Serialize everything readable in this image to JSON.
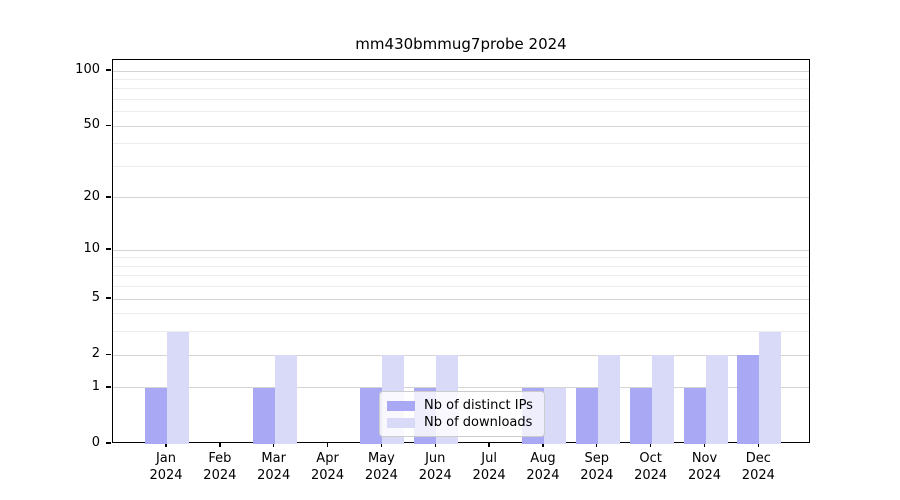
{
  "chart_data": {
    "type": "bar",
    "title": "mm430bmmug7probe 2024",
    "months": [
      "Jan",
      "Feb",
      "Mar",
      "Apr",
      "May",
      "Jun",
      "Jul",
      "Aug",
      "Sep",
      "Oct",
      "Nov",
      "Dec"
    ],
    "year": "2024",
    "categories": [
      "Jan 2024",
      "Feb 2024",
      "Mar 2024",
      "Apr 2024",
      "May 2024",
      "Jun 2024",
      "Jul 2024",
      "Aug 2024",
      "Sep 2024",
      "Oct 2024",
      "Nov 2024",
      "Dec 2024"
    ],
    "series": [
      {
        "name": "Nb of distinct IPs",
        "color": "#a8a8f5",
        "values": [
          1,
          0,
          1,
          0,
          1,
          1,
          0,
          1,
          1,
          1,
          1,
          2
        ]
      },
      {
        "name": "Nb of downloads",
        "color": "#d9d9f8",
        "values": [
          3,
          0,
          2,
          0,
          2,
          2,
          0,
          1,
          2,
          2,
          2,
          3
        ]
      }
    ],
    "yscale": "log1p",
    "ylim": [
      0,
      115
    ],
    "y_major_ticks": [
      0,
      1,
      2,
      5,
      10,
      20,
      50,
      100
    ],
    "y_minor_gridlines": [
      3,
      4,
      6,
      7,
      8,
      9,
      30,
      40,
      60,
      70,
      80,
      90
    ],
    "grid": true,
    "legend_position": "lower-center",
    "colors": {
      "major_grid": "#d4d4d4",
      "minor_grid": "#ececec",
      "spine": "#000000",
      "background": "#ffffff"
    }
  }
}
